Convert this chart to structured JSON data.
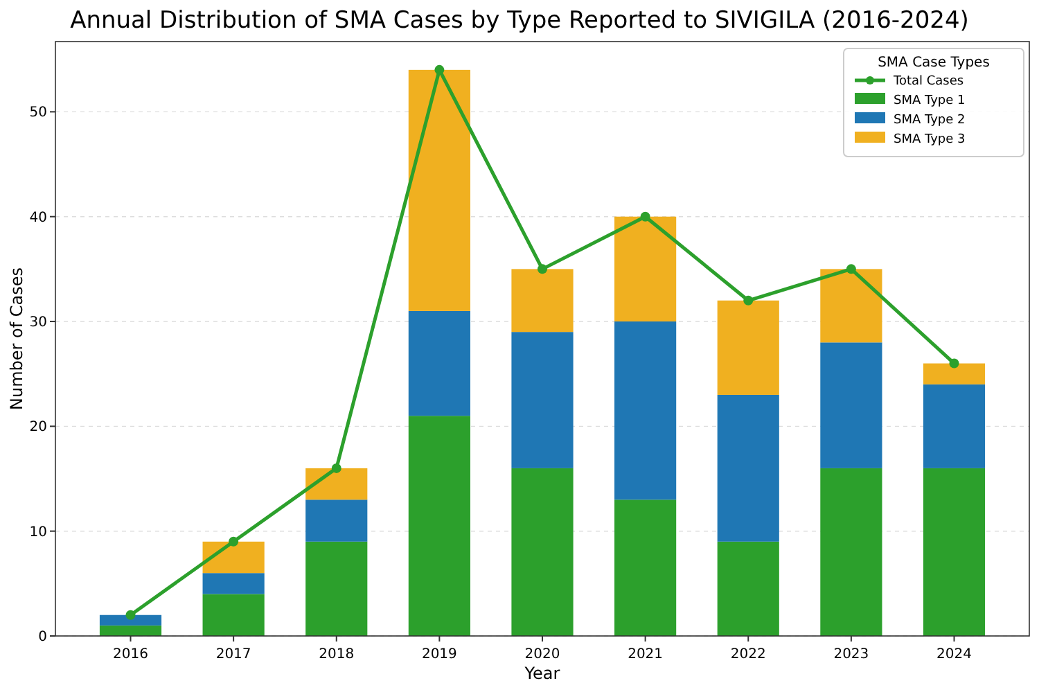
{
  "chart_data": {
    "type": "bar",
    "title": "Annual Distribution of SMA Cases by Type Reported to SIVIGILA (2016-2024)",
    "xlabel": "Year",
    "ylabel": "Number of Cases",
    "legend_title": "SMA Case Types",
    "categories": [
      "2016",
      "2017",
      "2018",
      "2019",
      "2020",
      "2021",
      "2022",
      "2023",
      "2024"
    ],
    "stacked": true,
    "ylim": [
      0,
      56.7
    ],
    "yticks": [
      0,
      10,
      20,
      30,
      40,
      50
    ],
    "grid": "y",
    "legend": "top right",
    "series": [
      {
        "name": "Total Cases",
        "type": "line",
        "color": "#2ca02c",
        "marker": "circle",
        "line_style": "solid",
        "values": [
          2,
          9,
          16,
          54,
          35,
          40,
          32,
          35,
          26
        ]
      },
      {
        "name": "SMA Type 1",
        "color": "#2ca02c",
        "values": [
          1,
          4,
          9,
          21,
          16,
          13,
          9,
          16,
          16
        ]
      },
      {
        "name": "SMA Type 2",
        "color": "#1f77b4",
        "values": [
          1,
          2,
          4,
          10,
          13,
          17,
          14,
          12,
          8
        ]
      },
      {
        "name": "SMA Type 3",
        "color": "#f0b020",
        "values": [
          0,
          3,
          3,
          23,
          6,
          10,
          9,
          7,
          2
        ]
      }
    ]
  }
}
